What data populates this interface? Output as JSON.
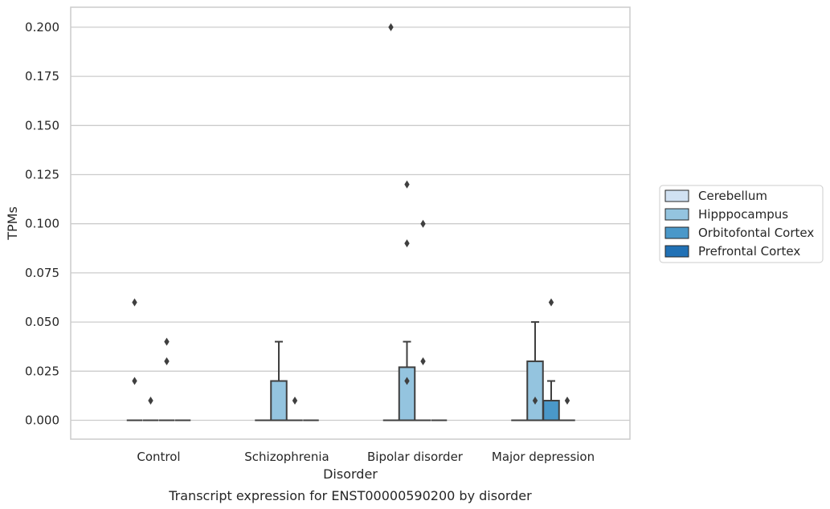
{
  "chart_data": {
    "type": "box",
    "title": "",
    "caption": "Transcript expression for ENST00000590200 by disorder",
    "xlabel": "Disorder",
    "ylabel": "TPMs",
    "ylim": [
      -0.01,
      0.21
    ],
    "yticks": [
      "0.000",
      "0.025",
      "0.050",
      "0.075",
      "0.100",
      "0.125",
      "0.150",
      "0.175",
      "0.200"
    ],
    "categories": [
      "Control",
      "Schizophrenia",
      "Bipolar disorder",
      "Major depression"
    ],
    "grid": "horizontal",
    "legend_position": "right",
    "series": [
      {
        "name": "Cerebellum",
        "color": "#d0e1f2",
        "boxes": [
          {
            "q1": 0,
            "median": 0,
            "q3": 0,
            "whisker_low": 0,
            "whisker_high": 0,
            "outliers": [
              0.06,
              0.02
            ]
          },
          {
            "q1": 0,
            "median": 0,
            "q3": 0,
            "whisker_low": 0,
            "whisker_high": 0,
            "outliers": []
          },
          {
            "q1": 0,
            "median": 0,
            "q3": 0,
            "whisker_low": 0,
            "whisker_high": 0,
            "outliers": [
              0.2
            ]
          },
          {
            "q1": 0,
            "median": 0,
            "q3": 0,
            "whisker_low": 0,
            "whisker_high": 0,
            "outliers": []
          }
        ]
      },
      {
        "name": "Hipppocampus",
        "color": "#94c4df",
        "boxes": [
          {
            "q1": 0,
            "median": 0,
            "q3": 0,
            "whisker_low": 0,
            "whisker_high": 0,
            "outliers": [
              0.01
            ]
          },
          {
            "q1": 0,
            "median": 0,
            "q3": 0.02,
            "whisker_low": 0,
            "whisker_high": 0.04,
            "outliers": []
          },
          {
            "q1": 0,
            "median": 0,
            "q3": 0.027,
            "whisker_low": 0,
            "whisker_high": 0.04,
            "outliers": [
              0.12,
              0.09,
              0.02
            ]
          },
          {
            "q1": 0,
            "median": 0,
            "q3": 0.03,
            "whisker_low": 0,
            "whisker_high": 0.05,
            "outliers": [
              0.01
            ]
          }
        ]
      },
      {
        "name": "Orbitofontal Cortex",
        "color": "#4a98c9",
        "boxes": [
          {
            "q1": 0,
            "median": 0,
            "q3": 0,
            "whisker_low": 0,
            "whisker_high": 0,
            "outliers": [
              0.04,
              0.03
            ]
          },
          {
            "q1": 0,
            "median": 0,
            "q3": 0,
            "whisker_low": 0,
            "whisker_high": 0,
            "outliers": [
              0.01
            ]
          },
          {
            "q1": 0,
            "median": 0,
            "q3": 0,
            "whisker_low": 0,
            "whisker_high": 0,
            "outliers": [
              0.1,
              0.03
            ]
          },
          {
            "q1": 0,
            "median": 0,
            "q3": 0.01,
            "whisker_low": 0,
            "whisker_high": 0.02,
            "outliers": [
              0.06
            ]
          }
        ]
      },
      {
        "name": "Prefrontal Cortex",
        "color": "#2171b5",
        "boxes": [
          {
            "q1": 0,
            "median": 0,
            "q3": 0,
            "whisker_low": 0,
            "whisker_high": 0,
            "outliers": []
          },
          {
            "q1": 0,
            "median": 0,
            "q3": 0,
            "whisker_low": 0,
            "whisker_high": 0,
            "outliers": []
          },
          {
            "q1": 0,
            "median": 0,
            "q3": 0,
            "whisker_low": 0,
            "whisker_high": 0,
            "outliers": []
          },
          {
            "q1": 0,
            "median": 0,
            "q3": 0,
            "whisker_low": 0,
            "whisker_high": 0,
            "outliers": [
              0.01
            ]
          }
        ]
      }
    ]
  }
}
